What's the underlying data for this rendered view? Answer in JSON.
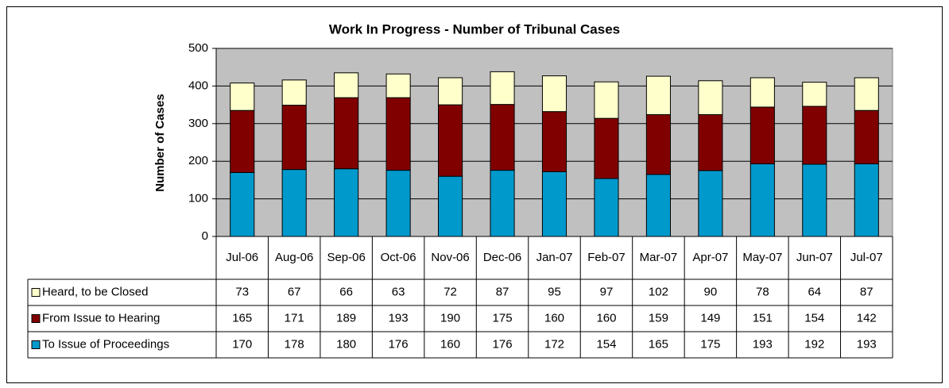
{
  "chart_data": {
    "type": "bar",
    "stacked": true,
    "title": "Work In Progress - Number of Tribunal Cases",
    "y_label": "Number of Cases",
    "categories": [
      "Jul-06",
      "Aug-06",
      "Sep-06",
      "Oct-06",
      "Nov-06",
      "Dec-06",
      "Jan-07",
      "Feb-07",
      "Mar-07",
      "Apr-07",
      "May-07",
      "Jun-07",
      "Jul-07"
    ],
    "series": [
      {
        "name": "Heard, to be Closed",
        "color": "#ffffcc",
        "values": [
          73,
          67,
          66,
          63,
          72,
          87,
          95,
          97,
          102,
          90,
          78,
          64,
          87
        ]
      },
      {
        "name": "From Issue to Hearing",
        "color": "#800000",
        "values": [
          165,
          171,
          189,
          193,
          190,
          175,
          160,
          160,
          159,
          149,
          151,
          154,
          142
        ]
      },
      {
        "name": "To Issue of Proceedings",
        "color": "#0099cc",
        "values": [
          170,
          178,
          180,
          176,
          160,
          176,
          172,
          154,
          165,
          175,
          193,
          192,
          193
        ]
      }
    ],
    "ylim": [
      0,
      500
    ],
    "yticks": [
      0,
      100,
      200,
      300,
      400,
      500
    ],
    "grid": true,
    "plot_background": "#c0c0c0"
  }
}
